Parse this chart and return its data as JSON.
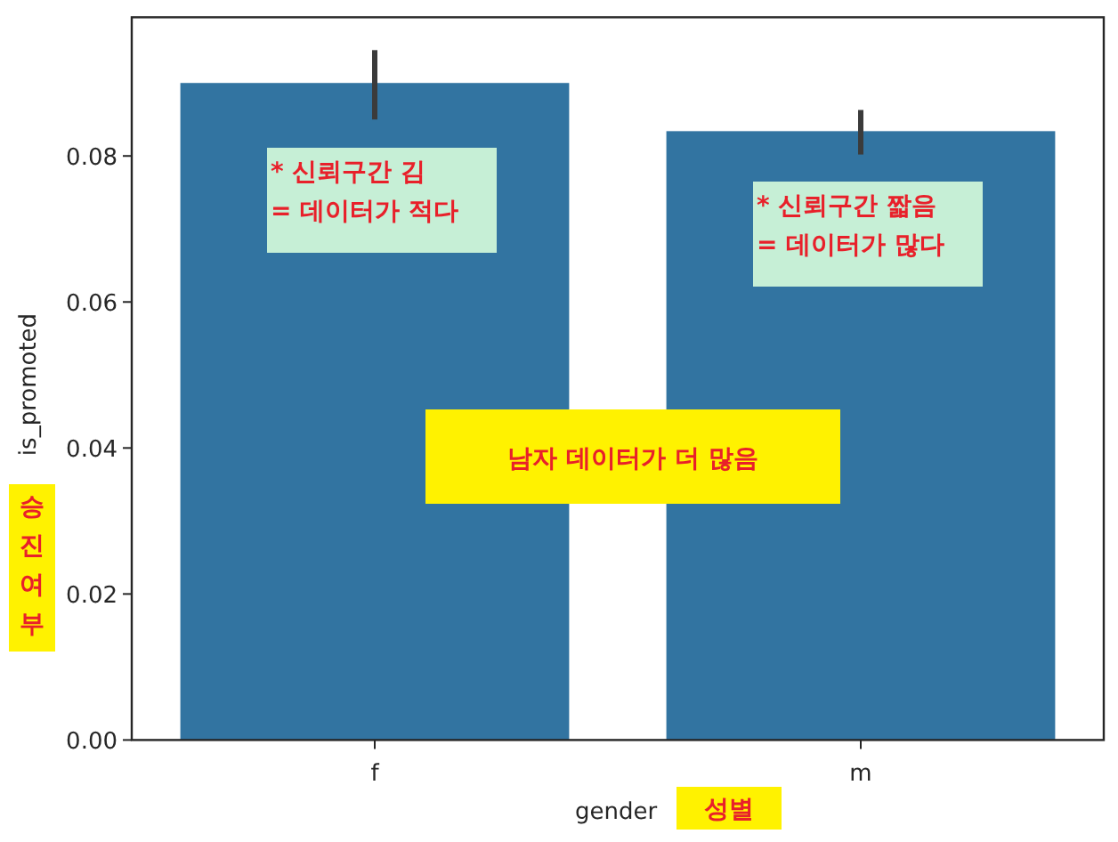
{
  "chart_data": {
    "type": "bar",
    "xlabel": "gender",
    "ylabel": "is_promoted",
    "categories": [
      "f",
      "m"
    ],
    "values": [
      0.09,
      0.0834
    ],
    "errors": [
      [
        0.085,
        0.0945
      ],
      [
        0.0802,
        0.0863
      ]
    ],
    "color": "#3274a1",
    "ylim": [
      0,
      0.099
    ],
    "yticks": [
      {
        "value": 0,
        "label": "0.00"
      },
      {
        "value": 0.02,
        "label": "0.02"
      },
      {
        "value": 0.04,
        "label": "0.04"
      },
      {
        "value": 0.06,
        "label": "0.06"
      },
      {
        "value": 0.08,
        "label": "0.08"
      }
    ],
    "grid": false,
    "annotations": [
      "*  신뢰구간 김\n= 데이터가 적다",
      "*  신뢰구간 짧음\n= 데이터가 많다",
      "남자 데이터가 더 많음",
      "승진여부",
      "성별"
    ]
  }
}
